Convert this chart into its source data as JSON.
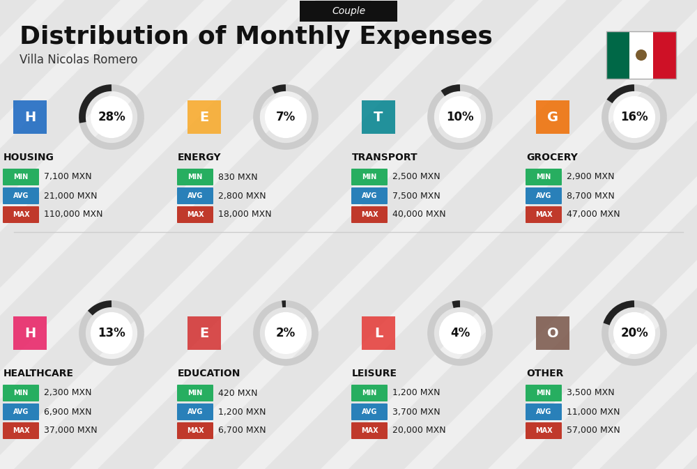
{
  "title": "Distribution of Monthly Expenses",
  "subtitle": "Villa Nicolas Romero",
  "label_couple": "Couple",
  "background_color": "#efefef",
  "categories": [
    {
      "name": "HOUSING",
      "percent": 28,
      "min": "7,100 MXN",
      "avg": "21,000 MXN",
      "max": "110,000 MXN",
      "row": 0,
      "col": 0
    },
    {
      "name": "ENERGY",
      "percent": 7,
      "min": "830 MXN",
      "avg": "2,800 MXN",
      "max": "18,000 MXN",
      "row": 0,
      "col": 1
    },
    {
      "name": "TRANSPORT",
      "percent": 10,
      "min": "2,500 MXN",
      "avg": "7,500 MXN",
      "max": "40,000 MXN",
      "row": 0,
      "col": 2
    },
    {
      "name": "GROCERY",
      "percent": 16,
      "min": "2,900 MXN",
      "avg": "8,700 MXN",
      "max": "47,000 MXN",
      "row": 0,
      "col": 3
    },
    {
      "name": "HEALTHCARE",
      "percent": 13,
      "min": "2,300 MXN",
      "avg": "6,900 MXN",
      "max": "37,000 MXN",
      "row": 1,
      "col": 0
    },
    {
      "name": "EDUCATION",
      "percent": 2,
      "min": "420 MXN",
      "avg": "1,200 MXN",
      "max": "6,700 MXN",
      "row": 1,
      "col": 1
    },
    {
      "name": "LEISURE",
      "percent": 4,
      "min": "1,200 MXN",
      "avg": "3,700 MXN",
      "max": "20,000 MXN",
      "row": 1,
      "col": 2
    },
    {
      "name": "OTHER",
      "percent": 20,
      "min": "3,500 MXN",
      "avg": "11,000 MXN",
      "max": "57,000 MXN",
      "row": 1,
      "col": 3
    }
  ],
  "min_color": "#27ae60",
  "avg_color": "#2980b9",
  "max_color": "#c0392b",
  "value_color": "#1a1a1a",
  "category_name_color": "#111111",
  "percent_color": "#111111",
  "arc_color": "#222222",
  "arc_bg_color": "#cccccc",
  "title_color": "#111111",
  "subtitle_color": "#333333",
  "couple_bg": "#111111",
  "couple_text": "#ffffff",
  "stripe_color": "#e4e4e4",
  "divider_color": "#cccccc",
  "flag_green": "#006847",
  "flag_white": "#ffffff",
  "flag_red": "#ce1126"
}
